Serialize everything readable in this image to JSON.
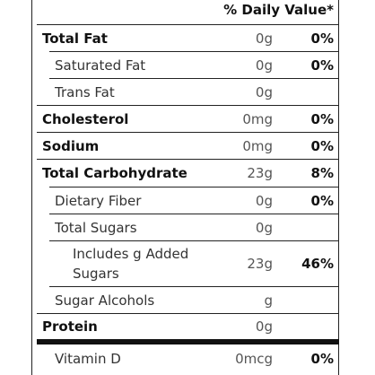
{
  "header": {
    "daily_value": "% Daily Value*"
  },
  "rows": [
    {
      "nutrient": "Total Fat",
      "amount": "0g",
      "daily_value": "0%"
    },
    {
      "nutrient": "Saturated Fat",
      "amount": "0g",
      "daily_value": "0%"
    },
    {
      "nutrient": "Trans Fat",
      "amount": "0g"
    },
    {
      "nutrient": "Cholesterol",
      "amount": "0mg",
      "daily_value": "0%"
    },
    {
      "nutrient": "Sodium",
      "amount": "0mg",
      "daily_value": "0%"
    },
    {
      "nutrient": "Total Carbohydrate",
      "amount": "23g",
      "daily_value": "8%"
    },
    {
      "nutrient": "Dietary Fiber",
      "amount": "0g",
      "daily_value": "0%"
    },
    {
      "nutrient": "Total Sugars",
      "amount": "0g"
    },
    {
      "nutrient": "Includes g Added Sugars",
      "amount": "23g",
      "daily_value": "46%"
    },
    {
      "nutrient": "Sugar Alcohols",
      "amount": "g"
    },
    {
      "nutrient": "Protein",
      "amount": "0g"
    },
    {
      "nutrient": "Vitamin D",
      "amount": "0mcg",
      "daily_value": "0%"
    }
  ]
}
